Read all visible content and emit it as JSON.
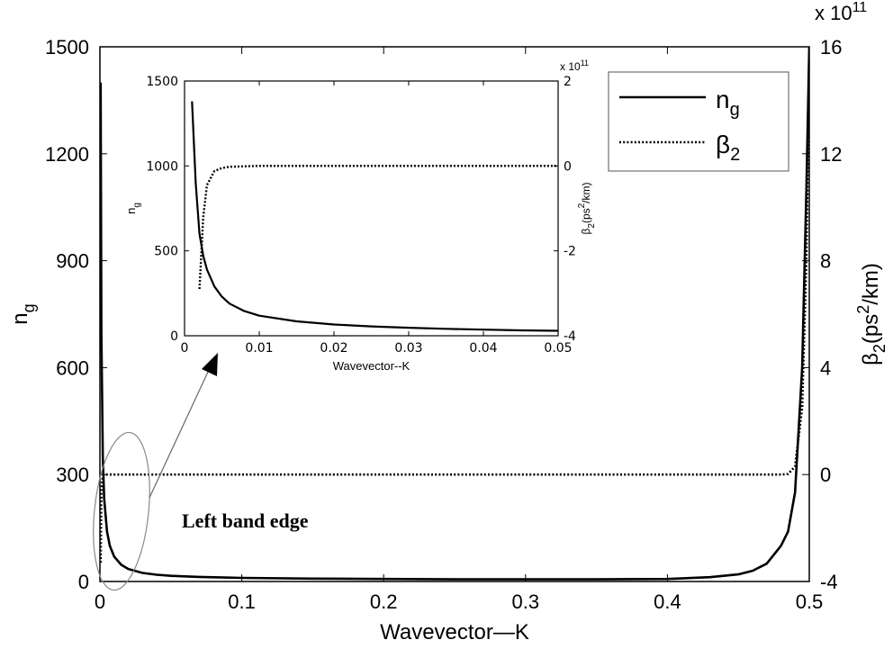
{
  "chart_data": [
    {
      "type": "line",
      "x": [
        0.0005,
        0.001,
        0.002,
        0.003,
        0.005,
        0.007,
        0.01,
        0.015,
        0.02,
        0.03,
        0.04,
        0.05,
        0.07,
        0.1,
        0.15,
        0.2,
        0.25,
        0.3,
        0.35,
        0.4,
        0.43,
        0.45,
        0.46,
        0.47,
        0.48,
        0.485,
        0.49,
        0.495,
        0.498,
        0.5
      ],
      "series": [
        {
          "name": "n_g",
          "axis": "left",
          "values": [
            1400,
            700,
            350,
            233,
            140,
            100,
            70,
            47,
            35,
            24,
            19,
            16,
            13,
            10,
            8,
            7,
            6,
            6,
            6,
            7,
            12,
            20,
            30,
            50,
            100,
            140,
            250,
            600,
            1100,
            1500
          ]
        },
        {
          "name": "β_2",
          "axis": "right",
          "values": [
            -330000000000.0,
            -60000000000.0,
            -5000000000.0,
            0,
            0,
            0,
            0,
            0,
            0,
            0,
            0,
            0,
            0,
            0,
            0,
            0,
            0,
            0,
            0,
            0,
            0,
            0,
            0,
            0,
            0,
            2000000000.0,
            30000000000.0,
            250000000000.0,
            800000000000.0,
            1600000000000.0
          ]
        }
      ],
      "xlabel": "Wavevector—K",
      "ylabel": "n",
      "ylabel_sub": "g",
      "y2label_pre": "β",
      "y2label_sub": "2",
      "y2label_post": "(ps",
      "y2label_sup": "2",
      "y2label_end": "/km)",
      "xlim": [
        0,
        0.5
      ],
      "ylim": [
        0,
        1500
      ],
      "y2lim": [
        -400000000000.0,
        1600000000000.0
      ],
      "x_ticks": [
        "0",
        "0.1",
        "0.2",
        "0.3",
        "0.4",
        "0.5"
      ],
      "y_ticks": [
        "0",
        "300",
        "600",
        "900",
        "1200",
        "1500"
      ],
      "y2_ticks": [
        "-4",
        "0",
        "4",
        "8",
        "12",
        "16"
      ],
      "y2_multiplier_base": "x 10",
      "y2_multiplier_exp": "11",
      "legend": {
        "placement": "top-right",
        "entries": [
          {
            "main": "n",
            "sub": "g",
            "style": "solid"
          },
          {
            "main": "β",
            "sub": "2",
            "style": "dotted"
          }
        ]
      },
      "annotation": "Left band edge",
      "grid": false
    },
    {
      "type": "line",
      "role": "inset",
      "x": [
        0.001,
        0.0015,
        0.002,
        0.0025,
        0.003,
        0.004,
        0.005,
        0.006,
        0.008,
        0.01,
        0.015,
        0.02,
        0.025,
        0.03,
        0.035,
        0.04,
        0.045,
        0.05
      ],
      "series": [
        {
          "name": "n_g",
          "axis": "left",
          "values": [
            1380,
            900,
            600,
            470,
            390,
            290,
            230,
            190,
            145,
            118,
            85,
            66,
            55,
            47,
            41,
            36,
            32,
            29
          ]
        },
        {
          "name": "β_2",
          "axis": "right",
          "values": [
            null,
            null,
            -290000000000.0,
            -120000000000.0,
            -45000000000.0,
            -12000000000.0,
            -5000000000.0,
            -2000000000.0,
            -1000000000.0,
            0,
            0,
            0,
            0,
            0,
            0,
            0,
            0,
            0
          ]
        }
      ],
      "xlabel": "Wavevector--K",
      "ylabel": "n",
      "ylabel_sub": "g",
      "y2label_pre": "β",
      "y2label_sub": "2",
      "y2label_post": "(ps",
      "y2label_sup": "2",
      "y2label_end": "/km)",
      "xlim": [
        0,
        0.05
      ],
      "ylim": [
        0,
        1500
      ],
      "y2lim": [
        -400000000000.0,
        200000000000.0
      ],
      "x_ticks": [
        "0",
        "0.01",
        "0.02",
        "0.03",
        "0.04",
        "0.05"
      ],
      "y_ticks": [
        "0",
        "500",
        "1000",
        "1500"
      ],
      "y2_ticks": [
        "-4",
        "-2",
        "0",
        "2"
      ],
      "y2_multiplier_base": "x 10",
      "y2_multiplier_exp": "11",
      "grid": false
    }
  ]
}
